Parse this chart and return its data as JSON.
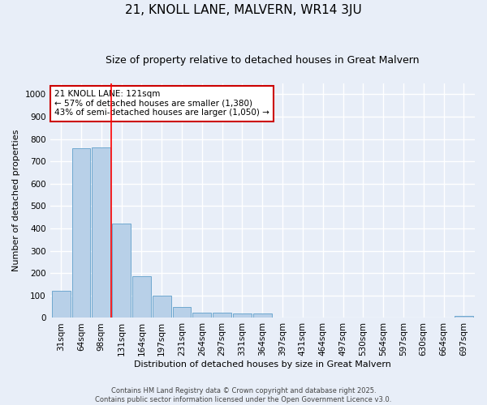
{
  "title1": "21, KNOLL LANE, MALVERN, WR14 3JU",
  "title2": "Size of property relative to detached houses in Great Malvern",
  "xlabel": "Distribution of detached houses by size in Great Malvern",
  "ylabel": "Number of detached properties",
  "categories": [
    "31sqm",
    "64sqm",
    "98sqm",
    "131sqm",
    "164sqm",
    "197sqm",
    "231sqm",
    "264sqm",
    "297sqm",
    "331sqm",
    "364sqm",
    "397sqm",
    "431sqm",
    "464sqm",
    "497sqm",
    "530sqm",
    "564sqm",
    "597sqm",
    "630sqm",
    "664sqm",
    "697sqm"
  ],
  "values": [
    120,
    758,
    762,
    420,
    185,
    98,
    47,
    23,
    23,
    18,
    18,
    0,
    0,
    0,
    0,
    0,
    0,
    0,
    0,
    0,
    8
  ],
  "bar_color": "#b8d0e8",
  "bar_edge_color": "#6fa8d0",
  "red_line_x": 2.5,
  "annotation_text": "21 KNOLL LANE: 121sqm\n← 57% of detached houses are smaller (1,380)\n43% of semi-detached houses are larger (1,050) →",
  "annotation_box_color": "#ffffff",
  "annotation_box_edge_color": "#cc0000",
  "background_color": "#e8eef8",
  "grid_color": "#ffffff",
  "footer_text": "Contains HM Land Registry data © Crown copyright and database right 2025.\nContains public sector information licensed under the Open Government Licence v3.0.",
  "ylim": [
    0,
    1050
  ],
  "yticks": [
    0,
    100,
    200,
    300,
    400,
    500,
    600,
    700,
    800,
    900,
    1000
  ],
  "title1_fontsize": 11,
  "title2_fontsize": 9,
  "axis_label_fontsize": 8,
  "tick_fontsize": 7.5,
  "annotation_fontsize": 7.5,
  "footer_fontsize": 6
}
